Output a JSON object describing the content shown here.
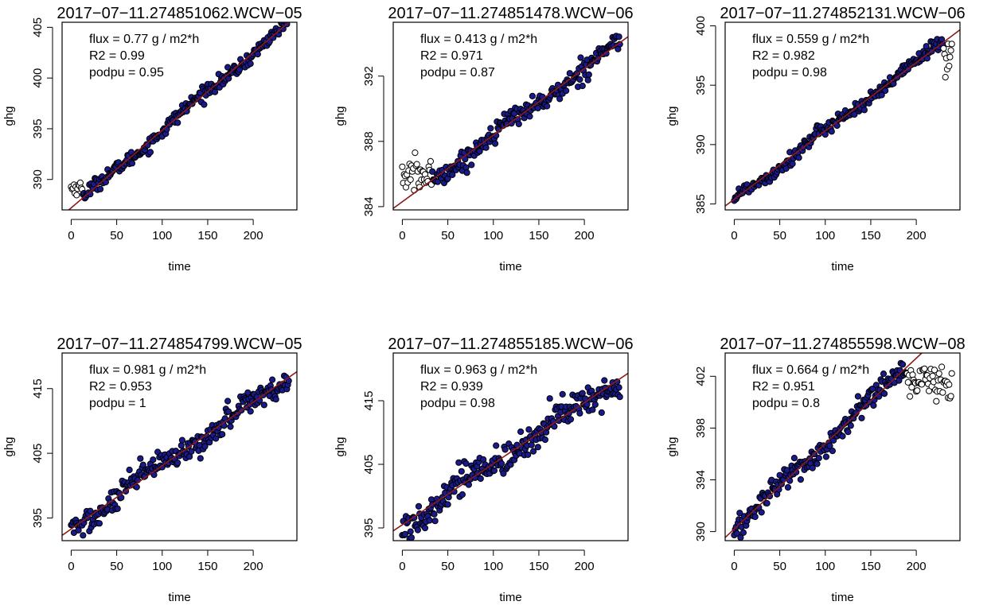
{
  "figure": {
    "xlabel": "time",
    "ylabel": "ghg"
  },
  "colors": {
    "point_fill": "#1a1a8c",
    "point_edge": "#000000",
    "unfilled_point_fill": "#ffffff",
    "fit_line": "#8b1a1a",
    "axis": "#000000",
    "background": "#ffffff"
  },
  "chart_data": [
    {
      "type": "scatter",
      "title": "2017−07−11.274851062.WCW−05",
      "xlabel": "time",
      "ylabel": "ghg",
      "xlim": [
        -10,
        248
      ],
      "ylim": [
        387,
        405.5
      ],
      "xticks": [
        0,
        50,
        100,
        150,
        200
      ],
      "yticks": [
        390,
        395,
        400,
        405
      ],
      "annotations": [
        "flux = 0.77 g / m2*h",
        "R2 = 0.99",
        "podpu = 0.95"
      ],
      "fit": {
        "intercept": 387.2,
        "slope": 0.0765
      },
      "noise": 0.45,
      "unfilled": {
        "x_max": 12,
        "y_center": 389.2,
        "y_spread": 0.35
      },
      "grid": false,
      "legend": "none"
    },
    {
      "type": "scatter",
      "title": "2017−07−11.274851478.WCW−06",
      "xlabel": "time",
      "ylabel": "ghg",
      "xlim": [
        -10,
        248
      ],
      "ylim": [
        383.8,
        395.3
      ],
      "xticks": [
        0,
        50,
        100,
        150,
        200
      ],
      "yticks": [
        384,
        388,
        392
      ],
      "annotations": [
        "flux = 0.413 g / m2*h",
        "R2 = 0.971",
        "podpu = 0.87"
      ],
      "fit": {
        "intercept": 384.3,
        "slope": 0.0408
      },
      "noise": 0.4,
      "unfilled": {
        "x_max": 32,
        "y_center": 385.9,
        "y_spread": 0.55
      },
      "grid": false,
      "legend": "none"
    },
    {
      "type": "scatter",
      "title": "2017−07−11.274852131.WCW−06",
      "xlabel": "time",
      "ylabel": "ghg",
      "xlim": [
        -10,
        248
      ],
      "ylim": [
        384.5,
        400.3
      ],
      "xticks": [
        0,
        50,
        100,
        150,
        200
      ],
      "yticks": [
        385,
        390,
        395,
        400
      ],
      "annotations": [
        "flux = 0.559 g / m2*h",
        "R2 = 0.982",
        "podpu = 0.98"
      ],
      "fit": {
        "intercept": 385.4,
        "slope": 0.0575
      },
      "noise": 0.4,
      "unfilled": {
        "x_min": 230,
        "y_center": 397.8,
        "y_spread": 0.9
      },
      "grid": false,
      "legend": "none"
    },
    {
      "type": "scatter",
      "title": "2017−07−11.274854799.WCW−05",
      "xlabel": "time",
      "ylabel": "ghg",
      "xlim": [
        -10,
        248
      ],
      "ylim": [
        391.5,
        420.5
      ],
      "xticks": [
        0,
        50,
        100,
        150,
        200
      ],
      "yticks": [
        395,
        405,
        415
      ],
      "annotations": [
        "flux = 0.981 g / m2*h",
        "R2 = 0.953",
        "podpu = 1"
      ],
      "fit": {
        "intercept": 393.3,
        "slope": 0.098
      },
      "noise": 1.3,
      "unfilled": null,
      "grid": false,
      "legend": "none"
    },
    {
      "type": "scatter",
      "title": "2017−07−11.274855185.WCW−06",
      "xlabel": "time",
      "ylabel": "ghg",
      "xlim": [
        -10,
        248
      ],
      "ylim": [
        393,
        422.5
      ],
      "xticks": [
        0,
        50,
        100,
        150,
        200
      ],
      "yticks": [
        395,
        405,
        415
      ],
      "annotations": [
        "flux = 0.963 g / m2*h",
        "R2 = 0.939",
        "podpu = 0.98"
      ],
      "fit": {
        "intercept": 395.5,
        "slope": 0.096
      },
      "noise": 1.6,
      "unfilled": null,
      "grid": false,
      "legend": "none"
    },
    {
      "type": "scatter",
      "title": "2017−07−11.274855598.WCW−08",
      "xlabel": "time",
      "ylabel": "ghg",
      "xlim": [
        -10,
        248
      ],
      "ylim": [
        389.3,
        403.8
      ],
      "xticks": [
        0,
        50,
        100,
        150,
        200
      ],
      "yticks": [
        390,
        394,
        398,
        402
      ],
      "annotations": [
        "flux = 0.664 g / m2*h",
        "R2 = 0.951",
        "podpu = 0.8"
      ],
      "fit": {
        "intercept": 390.2,
        "slope": 0.066
      },
      "noise": 0.6,
      "unfilled": {
        "x_min": 190,
        "y_center": 401.5,
        "y_spread": 0.65
      },
      "grid": false,
      "legend": "none"
    }
  ]
}
